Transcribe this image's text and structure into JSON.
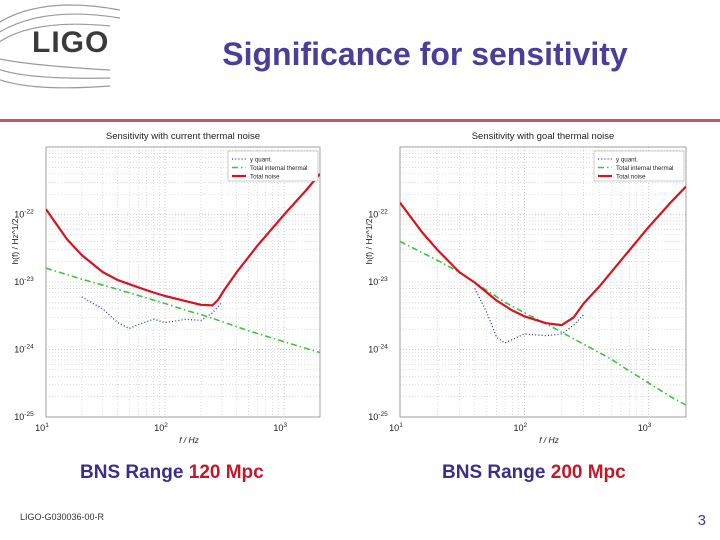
{
  "header": {
    "logo_text": "LIGO",
    "title": "Significance for sensitivity"
  },
  "colors": {
    "title": "#4d3d99",
    "rule": "#c25566",
    "total": "#d4141f",
    "thermal": "#3cc43c",
    "quant": "#2236a8"
  },
  "chart_data": [
    {
      "type": "line",
      "title": "Sensitivity with current thermal noise",
      "xlabel": "f / Hz",
      "ylabel": "h(f) / Hz^1/2",
      "xscale": "log",
      "yscale": "log",
      "xlim": [
        10,
        2000
      ],
      "ylim": [
        1e-25,
        1e-21
      ],
      "x_ticks": [
        {
          "base": "10",
          "exp": "1",
          "v": 10
        },
        {
          "base": "10",
          "exp": "2",
          "v": 100
        },
        {
          "base": "10",
          "exp": "3",
          "v": 1000
        }
      ],
      "y_ticks": [
        {
          "base": "10",
          "exp": "-22",
          "v": 1e-22
        },
        {
          "base": "10",
          "exp": "-23",
          "v": 1e-23
        },
        {
          "base": "10",
          "exp": "-24",
          "v": 1e-24
        },
        {
          "base": "10",
          "exp": "-25",
          "v": 1e-25
        }
      ],
      "legend": [
        "y quant.",
        "Total internal thermal",
        "Total noise"
      ],
      "legend_position": "top-right",
      "series": [
        {
          "name": "y quant.",
          "style": "dotted",
          "x": [
            20,
            30,
            40,
            50,
            60,
            80,
            100,
            150,
            200,
            250,
            300
          ],
          "y": [
            6e-24,
            4e-24,
            2.5e-24,
            2.05e-24,
            2.35e-24,
            2.8e-24,
            2.5e-24,
            2.8e-24,
            2.7e-24,
            3.5e-24,
            5e-24
          ]
        },
        {
          "name": "Total internal thermal",
          "style": "dashdot",
          "x": [
            10,
            20,
            40,
            70,
            100,
            150,
            200,
            300,
            500,
            1000,
            2000
          ],
          "y": [
            1.6e-23,
            1.1e-23,
            7.8e-24,
            5.8e-24,
            4.8e-24,
            3.8e-24,
            3.3e-24,
            2.6e-24,
            1.9e-24,
            1.3e-24,
            9e-25
          ]
        },
        {
          "name": "Total noise",
          "style": "solid",
          "x": [
            10,
            15,
            20,
            30,
            40,
            60,
            80,
            100,
            150,
            200,
            250,
            280,
            320,
            400,
            600,
            1000,
            1500,
            2000
          ],
          "y": [
            1.2e-22,
            4.3e-23,
            2.5e-23,
            1.4e-23,
            1.07e-23,
            8.3e-24,
            7e-24,
            6.2e-24,
            5.2e-24,
            4.6e-24,
            4.5e-24,
            5.5e-24,
            8e-24,
            1.4e-23,
            3.5e-23,
            1e-22,
            2.2e-22,
            4e-22
          ]
        }
      ],
      "caption_prefix": "BNS Range ",
      "caption_value": "120 Mpc"
    },
    {
      "type": "line",
      "title": "Sensitivity with goal thermal noise",
      "xlabel": "f / Hz",
      "ylabel": "h(f) / Hz^1/2",
      "xscale": "log",
      "yscale": "log",
      "xlim": [
        10,
        2000
      ],
      "ylim": [
        1e-25,
        1e-21
      ],
      "x_ticks": [
        {
          "base": "10",
          "exp": "1",
          "v": 10
        },
        {
          "base": "10",
          "exp": "2",
          "v": 100
        },
        {
          "base": "10",
          "exp": "3",
          "v": 1000
        }
      ],
      "y_ticks": [
        {
          "base": "10",
          "exp": "-22",
          "v": 1e-22
        },
        {
          "base": "10",
          "exp": "-23",
          "v": 1e-23
        },
        {
          "base": "10",
          "exp": "-24",
          "v": 1e-24
        },
        {
          "base": "10",
          "exp": "-25",
          "v": 1e-25
        }
      ],
      "legend": [
        "y quant.",
        "Total internal thermal",
        "Total noise"
      ],
      "legend_position": "top-right",
      "series": [
        {
          "name": "y quant.",
          "style": "dotted",
          "x": [
            40,
            50,
            60,
            70,
            80,
            100,
            150,
            200,
            250,
            300
          ],
          "y": [
            8e-24,
            3.5e-24,
            1.5e-24,
            1.25e-24,
            1.4e-24,
            1.7e-24,
            1.6e-24,
            1.7e-24,
            2.3e-24,
            3.3e-24
          ]
        },
        {
          "name": "Total internal thermal",
          "style": "dashdot",
          "x": [
            10,
            20,
            30,
            50,
            70,
            100,
            150,
            200,
            300,
            500,
            700,
            1000,
            1500,
            2000
          ],
          "y": [
            4e-23,
            2.1e-23,
            1.4e-23,
            7.5e-24,
            5e-24,
            3.5e-24,
            2.4e-24,
            1.8e-24,
            1.2e-24,
            7.2e-25,
            4.8e-25,
            3.2e-25,
            2e-25,
            1.5e-25
          ]
        },
        {
          "name": "Total noise",
          "style": "solid",
          "x": [
            10,
            15,
            20,
            30,
            40,
            60,
            80,
            100,
            150,
            200,
            250,
            300,
            400,
            600,
            1000,
            1500,
            2000
          ],
          "y": [
            1.5e-22,
            5.5e-23,
            3e-23,
            1.4e-23,
            9.8e-24,
            5.3e-24,
            3.8e-24,
            3.1e-24,
            2.45e-24,
            2.3e-24,
            3e-24,
            4.8e-24,
            8.5e-24,
            2.1e-23,
            6.5e-23,
            1.5e-22,
            2.6e-22
          ]
        }
      ],
      "caption_prefix": "BNS Range ",
      "caption_value": "200 Mpc"
    }
  ],
  "footer": {
    "doc_id": "LIGO-G030036-00-R",
    "page_number": "3"
  }
}
